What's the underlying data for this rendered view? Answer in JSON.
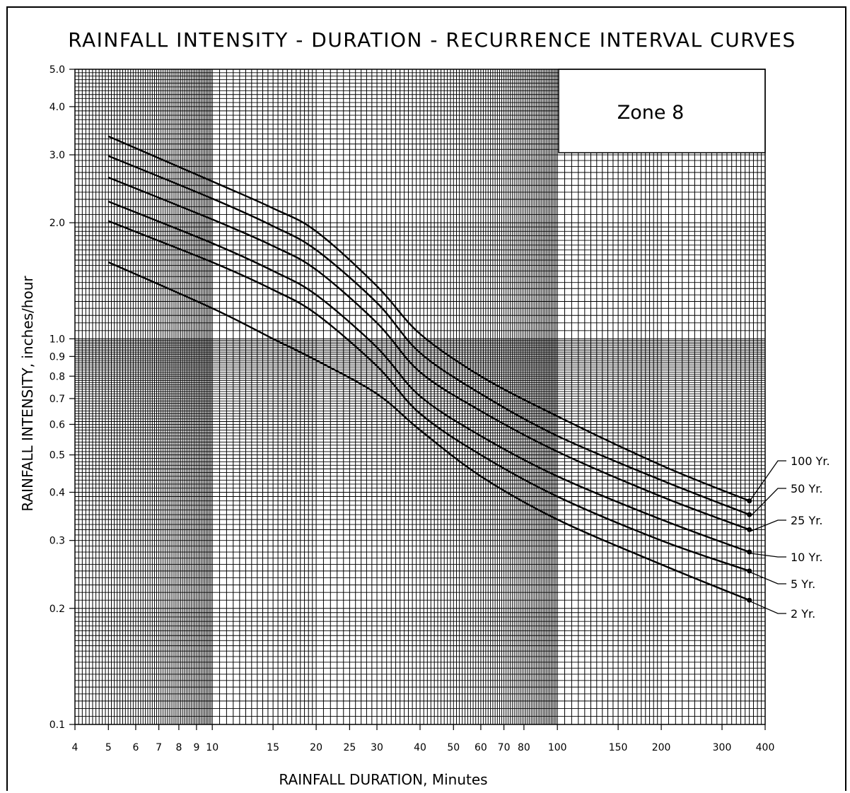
{
  "chart_data": {
    "type": "line",
    "title": "RAINFALL INTENSITY - DURATION - RECURRENCE INTERVAL CURVES",
    "zone_label": "Zone 8",
    "xlabel": "RAINFALL DURATION, Minutes",
    "ylabel": "RAINFALL INTENSITY, inches/hour",
    "x_scale": "log",
    "y_scale": "log",
    "xlim": [
      4,
      400
    ],
    "ylim": [
      0.1,
      5.0
    ],
    "grid": true,
    "x_ticks": [
      4,
      5,
      6,
      7,
      8,
      9,
      10,
      15,
      20,
      25,
      30,
      40,
      50,
      60,
      70,
      80,
      100,
      150,
      200,
      300,
      400
    ],
    "y_ticks": [
      0.1,
      0.2,
      0.3,
      0.4,
      0.5,
      0.6,
      0.7,
      0.8,
      0.9,
      1.0,
      2.0,
      3.0,
      4.0,
      5.0
    ],
    "series": [
      {
        "name": "100 Yr.",
        "x": [
          5,
          10,
          15,
          20,
          30,
          40,
          60,
          100,
          200,
          360
        ],
        "y": [
          3.35,
          2.56,
          2.18,
          1.9,
          1.37,
          1.03,
          0.8,
          0.63,
          0.47,
          0.38
        ]
      },
      {
        "name": "50 Yr.",
        "x": [
          5,
          10,
          15,
          20,
          30,
          40,
          60,
          100,
          200,
          360
        ],
        "y": [
          2.98,
          2.31,
          1.96,
          1.7,
          1.24,
          0.92,
          0.72,
          0.56,
          0.43,
          0.35
        ]
      },
      {
        "name": "25 Yr.",
        "x": [
          5,
          10,
          15,
          20,
          30,
          40,
          60,
          100,
          200,
          360
        ],
        "y": [
          2.62,
          2.04,
          1.74,
          1.51,
          1.1,
          0.82,
          0.65,
          0.51,
          0.39,
          0.32
        ]
      },
      {
        "name": "10 Yr.",
        "x": [
          5,
          10,
          15,
          20,
          30,
          40,
          60,
          100,
          200,
          360
        ],
        "y": [
          2.27,
          1.77,
          1.5,
          1.3,
          0.95,
          0.71,
          0.56,
          0.44,
          0.34,
          0.28
        ]
      },
      {
        "name": "5 Yr.",
        "x": [
          5,
          10,
          15,
          20,
          30,
          40,
          60,
          100,
          200,
          360
        ],
        "y": [
          2.02,
          1.58,
          1.34,
          1.16,
          0.85,
          0.64,
          0.5,
          0.39,
          0.3,
          0.25
        ]
      },
      {
        "name": "2 Yr.",
        "x": [
          5,
          10,
          15,
          20,
          30,
          40,
          60,
          100,
          200,
          360
        ],
        "y": [
          1.58,
          1.2,
          1.0,
          0.88,
          0.72,
          0.58,
          0.44,
          0.34,
          0.26,
          0.21
        ]
      }
    ]
  }
}
